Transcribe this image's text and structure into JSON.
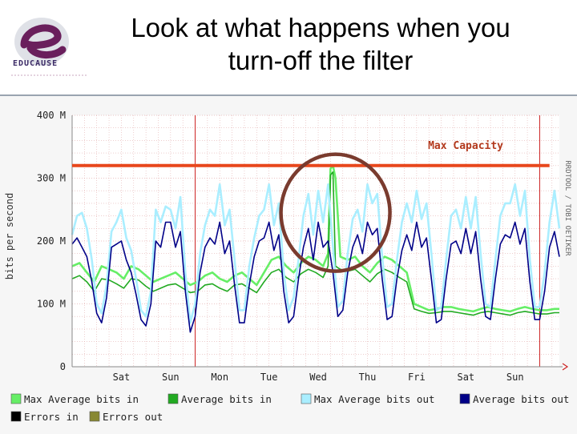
{
  "slide": {
    "title_line1": "Look at what happens when you",
    "title_line2": "turn-off the filter",
    "logo_text": "EDUCAUSE"
  },
  "chart_data": {
    "type": "line",
    "ylabel": "bits per second",
    "side_label": "RRDTOOL / TOBI OETIKER",
    "ylim": [
      0,
      400
    ],
    "y_ticks": [
      {
        "value": 0,
        "label": "0"
      },
      {
        "value": 100,
        "label": "100 M"
      },
      {
        "value": 200,
        "label": "200 M"
      },
      {
        "value": 300,
        "label": "300 M"
      },
      {
        "value": 400,
        "label": "400 M"
      }
    ],
    "x_range": [
      0,
      9.9
    ],
    "x_ticks": [
      {
        "x": 1.0,
        "label": "Sat"
      },
      {
        "x": 2.0,
        "label": "Sun"
      },
      {
        "x": 3.0,
        "label": "Mon"
      },
      {
        "x": 4.0,
        "label": "Tue"
      },
      {
        "x": 5.0,
        "label": "Wed"
      },
      {
        "x": 6.0,
        "label": "Thu"
      },
      {
        "x": 7.0,
        "label": "Fri"
      },
      {
        "x": 8.0,
        "label": "Sat"
      },
      {
        "x": 9.0,
        "label": "Sun"
      }
    ],
    "day_boundaries": [
      2.5,
      9.5
    ],
    "threshold": {
      "value": 320,
      "label": "Max Capacity",
      "color": "#e8471c"
    },
    "highlight": {
      "x": 5.35,
      "y": 245,
      "color": "#7a3b2e"
    },
    "series": [
      {
        "name": "Max Average bits in",
        "color": "#66ee66",
        "x": [
          0,
          0.15,
          0.3,
          0.45,
          0.6,
          0.75,
          0.9,
          1.05,
          1.2,
          1.35,
          1.5,
          1.65,
          1.8,
          1.95,
          2.1,
          2.25,
          2.4,
          2.55,
          2.7,
          2.85,
          3.0,
          3.15,
          3.3,
          3.45,
          3.6,
          3.75,
          3.9,
          4.05,
          4.2,
          4.35,
          4.5,
          4.65,
          4.8,
          4.95,
          5.1,
          5.2,
          5.25,
          5.3,
          5.35,
          5.45,
          5.6,
          5.75,
          5.9,
          6.05,
          6.2,
          6.35,
          6.5,
          6.65,
          6.8,
          6.95,
          7.1,
          7.25,
          7.4,
          7.55,
          7.7,
          7.85,
          8.0,
          8.15,
          8.3,
          8.45,
          8.6,
          8.75,
          8.9,
          9.05,
          9.2,
          9.35,
          9.5,
          9.65,
          9.8,
          9.9
        ],
        "values": [
          160,
          165,
          150,
          135,
          160,
          155,
          150,
          140,
          160,
          155,
          145,
          135,
          140,
          145,
          150,
          140,
          130,
          135,
          145,
          150,
          140,
          135,
          145,
          150,
          140,
          130,
          150,
          170,
          175,
          160,
          150,
          165,
          175,
          170,
          160,
          180,
          315,
          320,
          300,
          175,
          170,
          175,
          160,
          150,
          165,
          175,
          170,
          160,
          150,
          100,
          95,
          90,
          92,
          95,
          95,
          92,
          90,
          88,
          92,
          95,
          92,
          90,
          88,
          92,
          95,
          92,
          90,
          90,
          92,
          92
        ]
      },
      {
        "name": "Average bits in",
        "color": "#22aa22",
        "x": [
          0,
          0.15,
          0.3,
          0.45,
          0.6,
          0.75,
          0.9,
          1.05,
          1.2,
          1.35,
          1.5,
          1.65,
          1.8,
          1.95,
          2.1,
          2.25,
          2.4,
          2.55,
          2.7,
          2.85,
          3.0,
          3.15,
          3.3,
          3.45,
          3.6,
          3.75,
          3.9,
          4.05,
          4.2,
          4.35,
          4.5,
          4.65,
          4.8,
          4.95,
          5.1,
          5.2,
          5.25,
          5.3,
          5.35,
          5.45,
          5.6,
          5.75,
          5.9,
          6.05,
          6.2,
          6.35,
          6.5,
          6.65,
          6.8,
          6.95,
          7.1,
          7.25,
          7.4,
          7.55,
          7.7,
          7.85,
          8.0,
          8.15,
          8.3,
          8.45,
          8.6,
          8.75,
          8.9,
          9.05,
          9.2,
          9.35,
          9.5,
          9.65,
          9.8,
          9.9
        ],
        "values": [
          140,
          145,
          135,
          120,
          140,
          138,
          132,
          125,
          140,
          138,
          128,
          120,
          125,
          130,
          132,
          125,
          118,
          120,
          130,
          132,
          125,
          120,
          130,
          132,
          125,
          118,
          135,
          150,
          155,
          142,
          135,
          148,
          155,
          150,
          142,
          160,
          305,
          310,
          160,
          155,
          152,
          155,
          145,
          135,
          148,
          155,
          150,
          142,
          135,
          92,
          88,
          85,
          86,
          88,
          88,
          86,
          84,
          82,
          86,
          88,
          86,
          84,
          82,
          86,
          88,
          86,
          84,
          84,
          86,
          86
        ]
      },
      {
        "name": "Max Average bits out",
        "color": "#aaeeff",
        "x": [
          0,
          0.1,
          0.2,
          0.3,
          0.4,
          0.5,
          0.6,
          0.7,
          0.8,
          0.9,
          1.0,
          1.1,
          1.2,
          1.3,
          1.4,
          1.5,
          1.6,
          1.7,
          1.8,
          1.9,
          2.0,
          2.1,
          2.2,
          2.3,
          2.4,
          2.5,
          2.6,
          2.7,
          2.8,
          2.9,
          3.0,
          3.1,
          3.2,
          3.3,
          3.4,
          3.5,
          3.6,
          3.7,
          3.8,
          3.9,
          4.0,
          4.1,
          4.2,
          4.3,
          4.4,
          4.5,
          4.6,
          4.7,
          4.8,
          4.9,
          5.0,
          5.1,
          5.2,
          5.3,
          5.4,
          5.5,
          5.6,
          5.7,
          5.8,
          5.9,
          6.0,
          6.1,
          6.2,
          6.3,
          6.4,
          6.5,
          6.6,
          6.7,
          6.8,
          6.9,
          7.0,
          7.1,
          7.2,
          7.3,
          7.4,
          7.5,
          7.6,
          7.7,
          7.8,
          7.9,
          8.0,
          8.1,
          8.2,
          8.3,
          8.4,
          8.5,
          8.6,
          8.7,
          8.8,
          8.9,
          9.0,
          9.1,
          9.2,
          9.3,
          9.4,
          9.5,
          9.6,
          9.7,
          9.8,
          9.9
        ],
        "values": [
          210,
          240,
          245,
          220,
          170,
          100,
          85,
          130,
          215,
          230,
          250,
          205,
          185,
          140,
          90,
          80,
          120,
          250,
          230,
          255,
          250,
          220,
          270,
          150,
          70,
          100,
          180,
          225,
          250,
          240,
          290,
          225,
          250,
          170,
          90,
          90,
          160,
          205,
          240,
          250,
          290,
          225,
          260,
          150,
          90,
          110,
          170,
          240,
          275,
          210,
          280,
          230,
          290,
          190,
          95,
          105,
          180,
          235,
          250,
          215,
          290,
          260,
          275,
          175,
          95,
          100,
          170,
          230,
          260,
          230,
          280,
          235,
          260,
          180,
          90,
          95,
          170,
          240,
          250,
          220,
          270,
          220,
          270,
          180,
          100,
          95,
          170,
          240,
          260,
          260,
          290,
          240,
          280,
          170,
          95,
          95,
          150,
          230,
          280,
          220
        ]
      },
      {
        "name": "Average bits out",
        "color": "#000088",
        "x": [
          0,
          0.1,
          0.2,
          0.3,
          0.4,
          0.5,
          0.6,
          0.7,
          0.8,
          0.9,
          1.0,
          1.1,
          1.2,
          1.3,
          1.4,
          1.5,
          1.6,
          1.7,
          1.8,
          1.9,
          2.0,
          2.1,
          2.2,
          2.3,
          2.4,
          2.5,
          2.6,
          2.7,
          2.8,
          2.9,
          3.0,
          3.1,
          3.2,
          3.3,
          3.4,
          3.5,
          3.6,
          3.7,
          3.8,
          3.9,
          4.0,
          4.1,
          4.2,
          4.3,
          4.4,
          4.5,
          4.6,
          4.7,
          4.8,
          4.9,
          5.0,
          5.1,
          5.2,
          5.3,
          5.4,
          5.5,
          5.6,
          5.7,
          5.8,
          5.9,
          6.0,
          6.1,
          6.2,
          6.3,
          6.4,
          6.5,
          6.6,
          6.7,
          6.8,
          6.9,
          7.0,
          7.1,
          7.2,
          7.3,
          7.4,
          7.5,
          7.6,
          7.7,
          7.8,
          7.9,
          8.0,
          8.1,
          8.2,
          8.3,
          8.4,
          8.5,
          8.6,
          8.7,
          8.8,
          8.9,
          9.0,
          9.1,
          9.2,
          9.3,
          9.4,
          9.5,
          9.6,
          9.7,
          9.8,
          9.9
        ],
        "values": [
          195,
          205,
          190,
          175,
          135,
          85,
          70,
          110,
          190,
          195,
          200,
          170,
          150,
          115,
          75,
          65,
          100,
          200,
          190,
          230,
          230,
          190,
          215,
          120,
          55,
          80,
          150,
          190,
          205,
          195,
          230,
          180,
          200,
          130,
          70,
          70,
          130,
          175,
          200,
          205,
          230,
          185,
          210,
          120,
          70,
          80,
          140,
          190,
          220,
          170,
          230,
          190,
          200,
          150,
          80,
          90,
          150,
          190,
          210,
          180,
          230,
          210,
          220,
          140,
          75,
          80,
          140,
          185,
          210,
          185,
          230,
          190,
          205,
          140,
          70,
          75,
          140,
          195,
          200,
          180,
          220,
          180,
          215,
          140,
          80,
          75,
          140,
          195,
          210,
          205,
          230,
          195,
          220,
          135,
          75,
          75,
          120,
          190,
          215,
          175
        ]
      }
    ],
    "legend": [
      {
        "label": "Max Average bits in",
        "color": "#66ee66"
      },
      {
        "label": "Average bits in",
        "color": "#22aa22"
      },
      {
        "label": "Max Average bits out",
        "color": "#aaeeff"
      },
      {
        "label": "Average bits out",
        "color": "#000088"
      },
      {
        "label": "Errors in",
        "color": "#000000"
      },
      {
        "label": "Errors out",
        "color": "#888833"
      }
    ]
  }
}
